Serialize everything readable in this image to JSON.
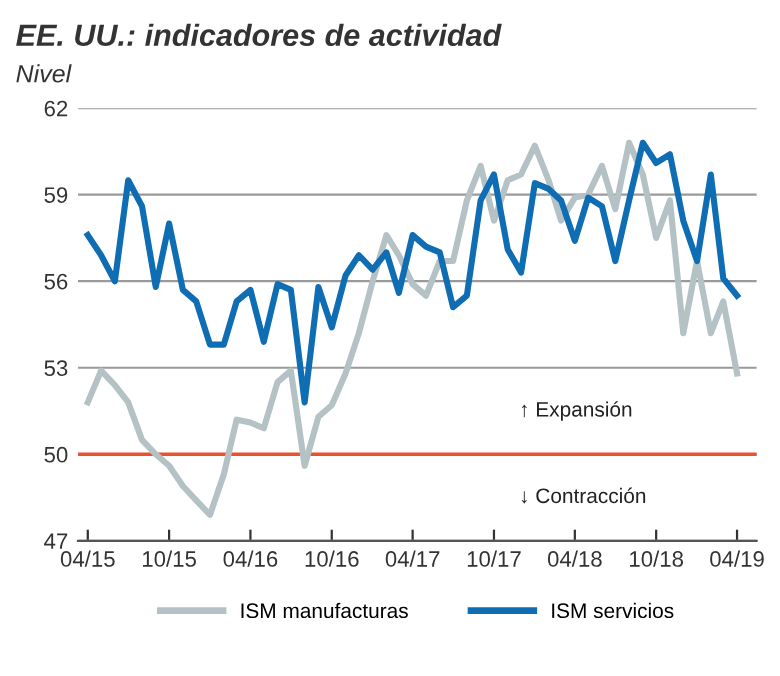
{
  "chart_data": {
    "type": "line",
    "title": "EE. UU.: indicadores de actividad",
    "subtitle": "Nivel",
    "x": [
      "2015-04",
      "2015-05",
      "2015-06",
      "2015-07",
      "2015-08",
      "2015-09",
      "2015-10",
      "2015-11",
      "2015-12",
      "2016-01",
      "2016-02",
      "2016-03",
      "2016-04",
      "2016-05",
      "2016-06",
      "2016-07",
      "2016-08",
      "2016-09",
      "2016-10",
      "2016-11",
      "2016-12",
      "2017-01",
      "2017-02",
      "2017-03",
      "2017-04",
      "2017-05",
      "2017-06",
      "2017-07",
      "2017-08",
      "2017-09",
      "2017-10",
      "2017-11",
      "2017-12",
      "2018-01",
      "2018-02",
      "2018-03",
      "2018-04",
      "2018-05",
      "2018-06",
      "2018-07",
      "2018-08",
      "2018-09",
      "2018-10",
      "2018-11",
      "2018-12",
      "2019-01",
      "2019-02",
      "2019-03",
      "2019-04"
    ],
    "series": [
      {
        "name": "ISM manufacturas",
        "color": "#b4c2c5",
        "values": [
          51.8,
          52.9,
          52.4,
          51.8,
          50.5,
          50.0,
          49.6,
          48.9,
          48.4,
          47.9,
          49.3,
          51.2,
          51.1,
          50.9,
          52.5,
          52.9,
          49.6,
          51.3,
          51.7,
          52.8,
          54.2,
          56.0,
          57.6,
          56.9,
          55.9,
          55.5,
          56.7,
          56.7,
          58.8,
          60.0,
          58.1,
          59.5,
          59.7,
          60.7,
          59.5,
          58.1,
          58.9,
          59.0,
          60.0,
          58.5,
          60.8,
          59.7,
          57.5,
          58.8,
          54.2,
          56.7,
          54.2,
          55.3,
          52.8
        ]
      },
      {
        "name": "ISM servicios",
        "color": "#0e6db3",
        "values": [
          57.6,
          56.9,
          56.0,
          59.5,
          58.6,
          55.8,
          58.0,
          55.7,
          55.3,
          53.8,
          53.8,
          55.3,
          55.7,
          53.9,
          55.9,
          55.7,
          51.8,
          55.8,
          54.4,
          56.2,
          56.9,
          56.4,
          57.0,
          55.6,
          57.6,
          57.2,
          57.0,
          55.1,
          55.5,
          58.8,
          59.7,
          57.1,
          56.3,
          59.4,
          59.2,
          58.8,
          57.4,
          58.9,
          58.6,
          56.7,
          58.8,
          60.8,
          60.1,
          60.4,
          58.1,
          56.7,
          59.7,
          56.1,
          55.5
        ]
      }
    ],
    "xlim": [
      "2015-03-10",
      "2019-05-15"
    ],
    "xticks": [
      {
        "value": "2015-04",
        "label": "04/15"
      },
      {
        "value": "2015-10",
        "label": "10/15"
      },
      {
        "value": "2016-04",
        "label": "04/16"
      },
      {
        "value": "2016-10",
        "label": "10/16"
      },
      {
        "value": "2017-04",
        "label": "04/17"
      },
      {
        "value": "2017-10",
        "label": "10/17"
      },
      {
        "value": "2018-04",
        "label": "04/18"
      },
      {
        "value": "2018-10",
        "label": "10/18"
      },
      {
        "value": "2019-04",
        "label": "04/19"
      }
    ],
    "ylim": [
      47,
      62
    ],
    "yticks": [
      47,
      50,
      53,
      56,
      59,
      62
    ],
    "grid": "y",
    "legend": "bottom",
    "ref_lines": [
      {
        "axis": "y",
        "value": 50,
        "color": "#e8532e"
      }
    ],
    "annotations": [
      "↑ Expansión",
      "↓ Contracción"
    ]
  }
}
